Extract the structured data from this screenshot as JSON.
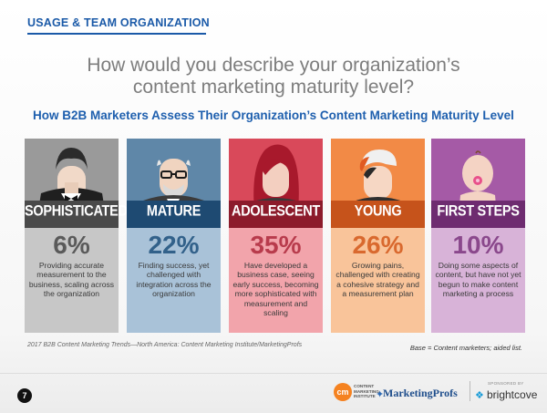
{
  "header": {
    "section_tag": "USAGE & TEAM ORGANIZATION"
  },
  "question": {
    "line1": "How would you describe your organization’s",
    "line2": "content marketing maturity level?"
  },
  "subtitle": "How B2B Marketers Assess Their Organization’s Content Marketing Maturity Level",
  "cards": [
    {
      "label": "SOPHISTICATED",
      "percent": "6%",
      "description": "Providing accurate measurement to the business, scaling across the organization",
      "portrait_icon": "tuxedo-man-icon",
      "color": "#4a4a4a"
    },
    {
      "label": "MATURE",
      "percent": "22%",
      "description": "Finding success, yet challenged with integration across the organization",
      "portrait_icon": "older-man-glasses-icon",
      "color": "#1e4a72"
    },
    {
      "label": "ADOLESCENT",
      "percent": "35%",
      "description": "Have developed a business case, seeing early success, becoming more sophisticated with measurement and scaling",
      "portrait_icon": "teen-girl-icon",
      "color": "#8c1b2b"
    },
    {
      "label": "YOUNG",
      "percent": "26%",
      "description": "Growing pains, challenged with creating a cohesive strategy and a measurement plan",
      "portrait_icon": "kid-cap-icon",
      "color": "#c6531b"
    },
    {
      "label": "FIRST STEPS",
      "percent": "10%",
      "description": "Doing some aspects of content, but have not yet begun to make content marketing a process",
      "portrait_icon": "baby-pacifier-icon",
      "color": "#6e2c70"
    }
  ],
  "source": "2017 B2B Content Marketing Trends—North America: Content Marketing Institute/MarketingProfs",
  "base_note": "Base = Content marketers; aided list.",
  "footer": {
    "page_number": "7",
    "cmi_mark": "cm",
    "cmi_text_1": "CONTENT",
    "cmi_text_2": "MARKETING",
    "cmi_text_3": "INSTITUTE",
    "marketingprofs": "MarketingProfs",
    "sponsored_by": "SPONSORED BY",
    "brightcove": "brightcove"
  }
}
